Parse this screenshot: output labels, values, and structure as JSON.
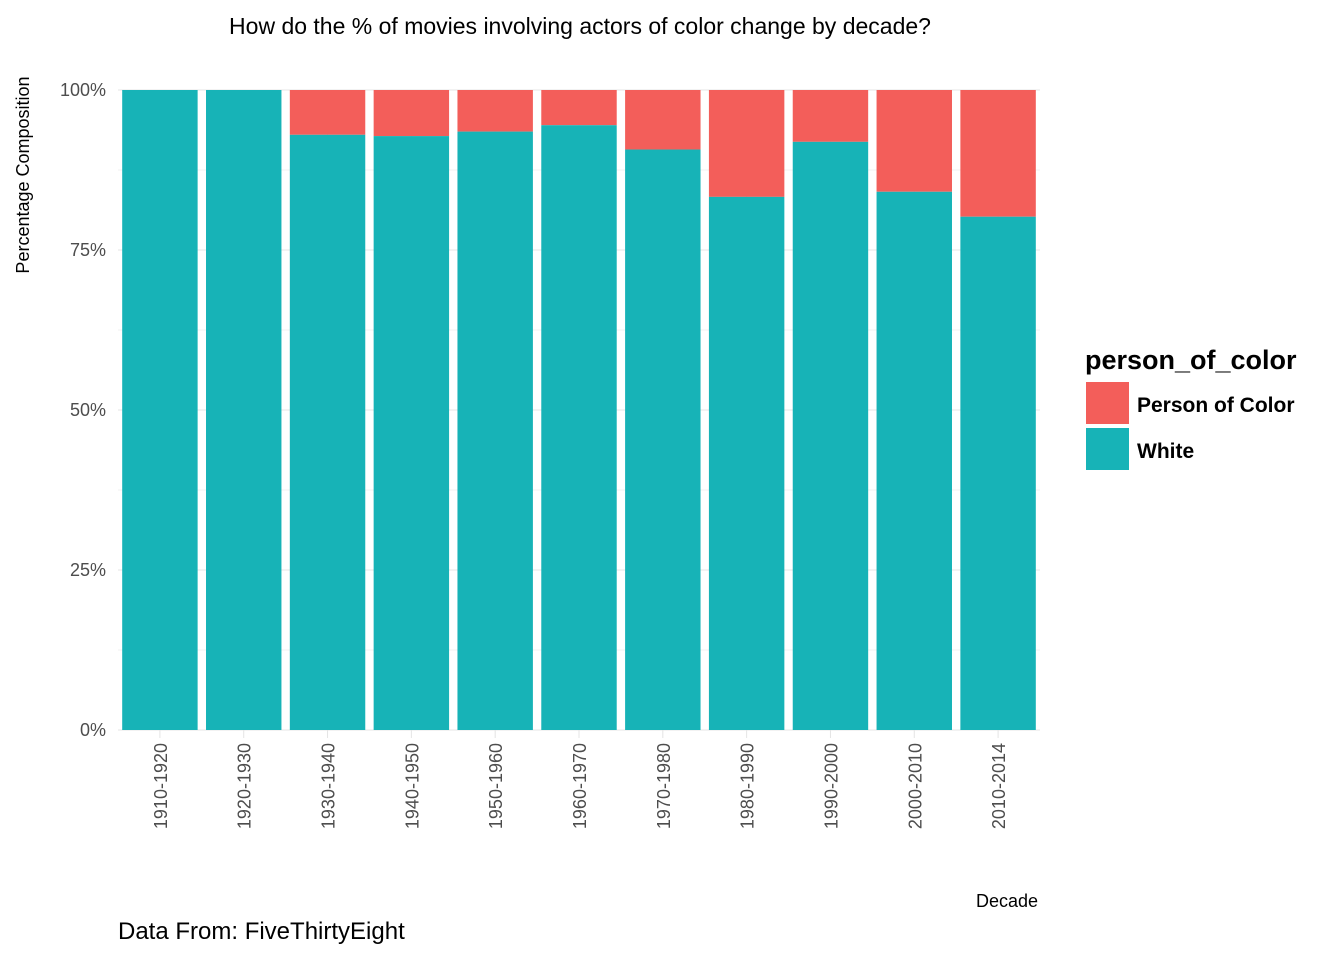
{
  "chart_data": {
    "type": "bar",
    "stacked": true,
    "title": "How do the % of movies involving actors of color change by decade?",
    "xlabel": "Decade",
    "ylabel": "Percentage Composition",
    "caption": "Data From: FiveThirtyEight",
    "ylim": [
      0,
      1
    ],
    "y_ticks": [
      "0%",
      "25%",
      "50%",
      "75%",
      "100%"
    ],
    "grid": true,
    "legend_position": "right",
    "legend_title": "person_of_color",
    "categories": [
      "1910-1920",
      "1920-1930",
      "1930-1940",
      "1940-1950",
      "1950-1960",
      "1960-1970",
      "1970-1980",
      "1980-1990",
      "1990-2000",
      "2000-2010",
      "2010-2014"
    ],
    "series": [
      {
        "name": "Person of Color",
        "color": "#F35E5A",
        "values": [
          0.0,
          0.0,
          0.07,
          0.072,
          0.065,
          0.055,
          0.093,
          0.167,
          0.081,
          0.159,
          0.198
        ]
      },
      {
        "name": "White",
        "color": "#17B3B7",
        "values": [
          1.0,
          1.0,
          0.93,
          0.928,
          0.935,
          0.945,
          0.907,
          0.833,
          0.919,
          0.841,
          0.802
        ]
      }
    ]
  }
}
